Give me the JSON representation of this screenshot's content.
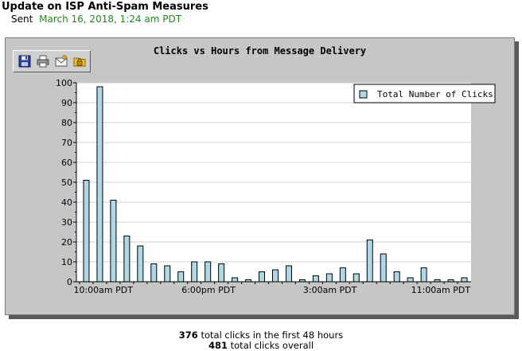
{
  "header": {
    "title": "Update on ISP Anti-Spam Measures",
    "sent_label": "Sent",
    "sent_date": "March 16, 2018, 1:24 am PDT"
  },
  "toolbar": {
    "icons": [
      "floppy-disk-icon",
      "printer-icon",
      "envelope-icon",
      "folder-lock-icon"
    ]
  },
  "chart_data": {
    "type": "bar",
    "title": "Clicks vs Hours from Message Delivery",
    "xlabel": "",
    "ylabel": "",
    "ylim": [
      0,
      100
    ],
    "yticks": [
      0,
      10,
      20,
      30,
      40,
      50,
      60,
      70,
      80,
      90,
      100
    ],
    "x_tick_labels": [
      {
        "index": 0,
        "label": "10:00am PDT"
      },
      {
        "index": 8,
        "label": "6:00pm PDT"
      },
      {
        "index": 17,
        "label": "3:00am PDT"
      },
      {
        "index": 25,
        "label": "11:00am PDT"
      }
    ],
    "grid": true,
    "legend_position": "top-right",
    "series": [
      {
        "name": "Total Number of Clicks",
        "color": "#add8e6",
        "values": [
          51,
          98,
          41,
          23,
          18,
          9,
          8,
          5,
          10,
          10,
          9,
          2,
          1,
          5,
          6,
          8,
          1,
          3,
          4,
          7,
          4,
          21,
          14,
          5,
          2,
          7,
          1,
          1,
          2
        ]
      }
    ]
  },
  "summary": {
    "first_48_count": "376",
    "first_48_text": " total clicks in the first 48 hours",
    "overall_count": "481",
    "overall_text": " total clicks overall"
  }
}
